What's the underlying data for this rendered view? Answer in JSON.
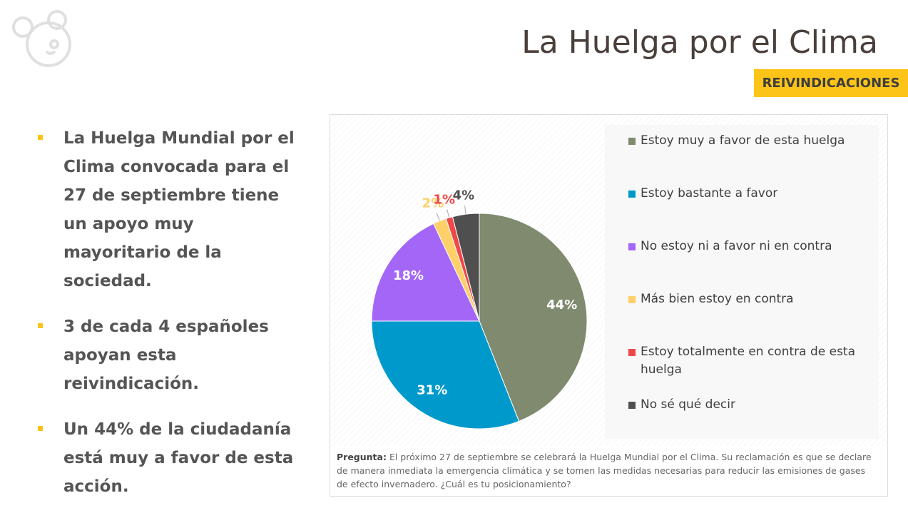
{
  "header": {
    "title": "La Huelga por el Clima",
    "tag": "REIVINDICACIONES"
  },
  "bullets": [
    {
      "runs": [
        {
          "text": "La Huelga Mundial por el Clima convocada para el 27 de septiembre tiene un apoyo muy mayoritario de la sociedad.",
          "bold": false
        }
      ]
    },
    {
      "runs": [
        {
          "text": "3 de cada 4 españoles apoyan",
          "bold": true
        },
        {
          "text": " esta reivindicación.",
          "bold": false
        }
      ]
    },
    {
      "runs": [
        {
          "text": "Un ",
          "bold": false
        },
        {
          "text": "44%",
          "bold": true
        },
        {
          "text": " de la ciudadanía está muy a favor de esta acción.",
          "bold": false
        }
      ]
    }
  ],
  "chart_data": {
    "type": "pie",
    "categories": [
      "Estoy muy a favor de esta huelga",
      "Estoy bastante a favor",
      "No estoy ni a favor ni en contra",
      "Más bien estoy en contra",
      "Estoy totalmente en contra de esta huelga",
      "No sé qué decir"
    ],
    "values": [
      44,
      31,
      18,
      2,
      1,
      4
    ],
    "value_labels": [
      "44%",
      "31%",
      "18%",
      "2%",
      "1%",
      "4%"
    ],
    "colors": [
      "#7f8a6f",
      "#0099cc",
      "#a366f7",
      "#fdd06a",
      "#f04848",
      "#4f4f4f"
    ]
  },
  "note": {
    "label": "Pregunta:",
    "text": " El próximo 27 de septiembre se celebrará la Huelga Mundial por el Clima. Su reclamación es que se declare de manera inmediata la emergencia climática y se tomen las medidas necesarias para reducir las emisiones de gases de efecto invernadero. ¿Cuál es tu posicionamiento?"
  }
}
